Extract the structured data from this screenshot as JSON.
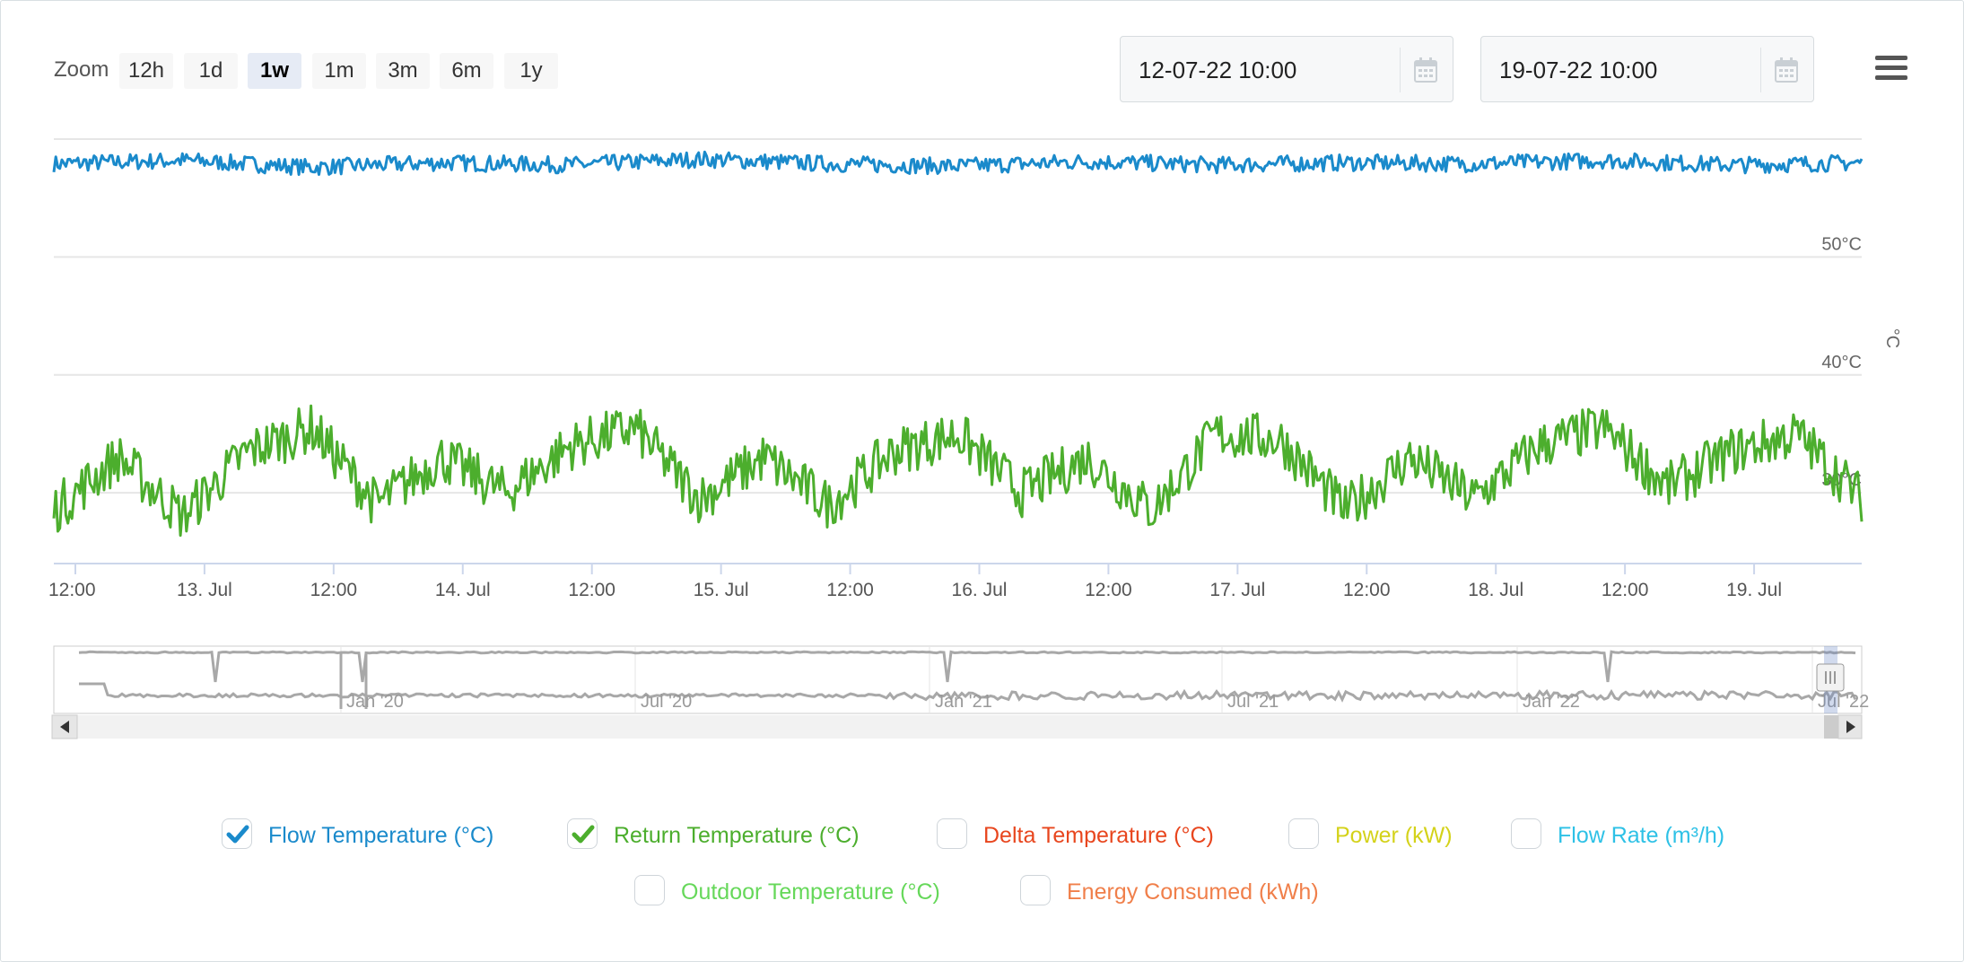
{
  "zoom": {
    "label": "Zoom",
    "buttons": [
      {
        "label": "12h",
        "active": false
      },
      {
        "label": "1d",
        "active": false
      },
      {
        "label": "1w",
        "active": true
      },
      {
        "label": "1m",
        "active": false
      },
      {
        "label": "3m",
        "active": false
      },
      {
        "label": "6m",
        "active": false
      },
      {
        "label": "1y",
        "active": false
      }
    ]
  },
  "range": {
    "from": "12-07-22 10:00",
    "to": "19-07-22 10:00"
  },
  "icons": {
    "calendar": "calendar-icon",
    "menu": "hamburger-menu-icon",
    "check": "checkmark-icon"
  },
  "colors": {
    "flow": "#1a8acb",
    "return": "#4cae2d",
    "delta": "#e8461e",
    "power": "#d4d21a",
    "flowrate": "#2ec1e6",
    "outdoor": "#66d85a",
    "energy": "#f07f4a",
    "navigator": "#a8a8a8"
  },
  "chart_data": {
    "type": "line",
    "x_start": "2022-07-12 10:00",
    "x_end": "2022-07-19 10:00",
    "x_ticks": [
      "12:00",
      "13. Jul",
      "12:00",
      "14. Jul",
      "12:00",
      "15. Jul",
      "12:00",
      "16. Jul",
      "12:00",
      "17. Jul",
      "12:00",
      "18. Jul",
      "12:00",
      "19. Jul"
    ],
    "y_unit_label": "°C",
    "y_ticks": [
      "30°C",
      "40°C",
      "50°C"
    ],
    "ylim": [
      24,
      60
    ],
    "grid": true,
    "series": [
      {
        "name": "Flow Temperature (°C)",
        "color": "#1a8acb",
        "x_days": [
          0,
          0.5,
          1,
          1.5,
          2,
          2.5,
          3,
          3.5,
          4,
          4.5,
          5,
          5.5,
          6,
          6.5,
          7
        ],
        "values": [
          57.9,
          58.2,
          57.6,
          58.0,
          57.8,
          58.3,
          57.9,
          57.7,
          58.1,
          57.8,
          58.0,
          57.9,
          58.2,
          57.8,
          58.0
        ]
      },
      {
        "name": "Return Temperature (°C)",
        "color": "#4cae2d",
        "x_days": [
          0,
          0.25,
          0.5,
          0.75,
          1,
          1.25,
          1.5,
          1.75,
          2,
          2.25,
          2.5,
          2.75,
          3,
          3.25,
          3.5,
          3.75,
          4,
          4.25,
          4.5,
          4.75,
          5,
          5.25,
          5.5,
          5.75,
          6,
          6.25,
          6.5,
          6.75,
          7
        ],
        "values": [
          28.5,
          33.0,
          28.0,
          33.5,
          35.5,
          29.0,
          33.0,
          30.0,
          34.0,
          35.5,
          29.5,
          33.0,
          29.0,
          33.5,
          35.0,
          30.0,
          33.0,
          28.5,
          35.0,
          34.5,
          28.5,
          33.0,
          29.5,
          34.0,
          35.5,
          30.5,
          33.5,
          35.0,
          29.5
        ]
      }
    ]
  },
  "navigator": {
    "labels": [
      "Jan '20",
      "Jul '20",
      "Jan '21",
      "Jul '21",
      "Jan '22",
      "Jul '22"
    ]
  },
  "legend": [
    {
      "label": "Flow Temperature (°C)",
      "checked": true,
      "color": "#1a8acb"
    },
    {
      "label": "Return Temperature (°C)",
      "checked": true,
      "color": "#4cae2d"
    },
    {
      "label": "Delta Temperature (°C)",
      "checked": false,
      "color": "#e8461e"
    },
    {
      "label": "Power (kW)",
      "checked": false,
      "color": "#d4d21a"
    },
    {
      "label": "Flow Rate (m³/h)",
      "checked": false,
      "color": "#2ec1e6"
    },
    {
      "label": "Outdoor Temperature (°C)",
      "checked": false,
      "color": "#66d85a"
    },
    {
      "label": "Energy Consumed (kWh)",
      "checked": false,
      "color": "#f07f4a"
    }
  ]
}
